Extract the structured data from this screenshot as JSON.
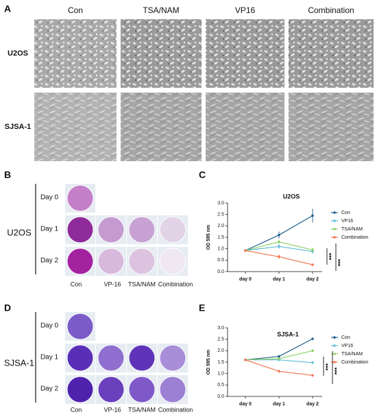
{
  "panel_labels": [
    "A",
    "B",
    "C",
    "D",
    "E"
  ],
  "microscopy": {
    "columns": [
      "Con",
      "TSA/NAM",
      "VP16",
      "Combination"
    ],
    "rows": [
      "U2OS",
      "SJSA-1"
    ]
  },
  "crystal_violet": [
    {
      "cell_line": "U2OS",
      "days": [
        "Day 0",
        "Day 1",
        "Day 2"
      ],
      "conditions": [
        "Con",
        "VP-16",
        "TSA/NAM",
        "Combination"
      ]
    },
    {
      "cell_line": "SJSA-1",
      "days": [
        "Day 0",
        "Day 1",
        "Day 2"
      ],
      "conditions": [
        "Con",
        "VP-16",
        "TSA/NAM",
        "Combination"
      ]
    }
  ],
  "chart_data": [
    {
      "type": "line",
      "title": "U2OS",
      "ylabel": "OD 595 nm",
      "categories": [
        "day 0",
        "day 1",
        "day 2"
      ],
      "ylim": [
        0,
        3
      ],
      "yticks": [
        {
          "value": 0,
          "label": "0.0"
        },
        0.5,
        {
          "value": 1,
          "label": "1.0"
        },
        1.5,
        {
          "value": 2,
          "label": "2.0"
        },
        2.5,
        {
          "value": 3,
          "label": "3.0"
        }
      ],
      "legend": "right",
      "series": [
        {
          "name": "Con",
          "color": "#1f5f8b",
          "values": [
            0.92,
            1.6,
            2.45
          ],
          "errors": [
            0.02,
            0.15,
            0.3
          ]
        },
        {
          "name": "VP16",
          "color": "#5bbcd6",
          "values": [
            0.92,
            1.1,
            0.88
          ],
          "errors": [
            0.02,
            0.1,
            0.1
          ]
        },
        {
          "name": "TSA/NAM",
          "color": "#8fd16a",
          "values": [
            0.92,
            1.3,
            0.95
          ],
          "errors": [
            0.02,
            0.08,
            0.1
          ]
        },
        {
          "name": "Combination",
          "color": "#f4734f",
          "values": [
            0.92,
            0.65,
            0.3
          ],
          "errors": [
            0.02,
            0.1,
            0.05
          ]
        }
      ],
      "annotations": [
        "***",
        "***"
      ]
    },
    {
      "type": "line",
      "title": "SJSA-1",
      "ylabel": "OD 595 nm",
      "categories": [
        "day 0",
        "day 1",
        "day 2"
      ],
      "ylim": [
        0,
        3
      ],
      "yticks": [
        {
          "value": 0,
          "label": "0.0"
        },
        0.5,
        {
          "value": 1,
          "label": "1.0"
        },
        1.5,
        {
          "value": 2,
          "label": "2.0"
        },
        2.5,
        {
          "value": 3,
          "label": "3.0"
        }
      ],
      "legend": "right",
      "series": [
        {
          "name": "Con",
          "color": "#1f5f8b",
          "values": [
            1.6,
            1.75,
            2.52
          ],
          "errors": [
            0.03,
            0.03,
            0.03
          ]
        },
        {
          "name": "VP16",
          "color": "#5bbcd6",
          "values": [
            1.6,
            1.6,
            1.48
          ],
          "errors": [
            0.03,
            0.03,
            0.03
          ]
        },
        {
          "name": "TSA/NAM",
          "color": "#8fd16a",
          "values": [
            1.6,
            1.65,
            2.0
          ],
          "errors": [
            0.03,
            0.03,
            0.03
          ]
        },
        {
          "name": "Combination",
          "color": "#f4734f",
          "values": [
            1.6,
            1.1,
            0.92
          ],
          "errors": [
            0.03,
            0.03,
            0.03
          ]
        }
      ],
      "annotations": [
        "***",
        "***"
      ]
    }
  ]
}
